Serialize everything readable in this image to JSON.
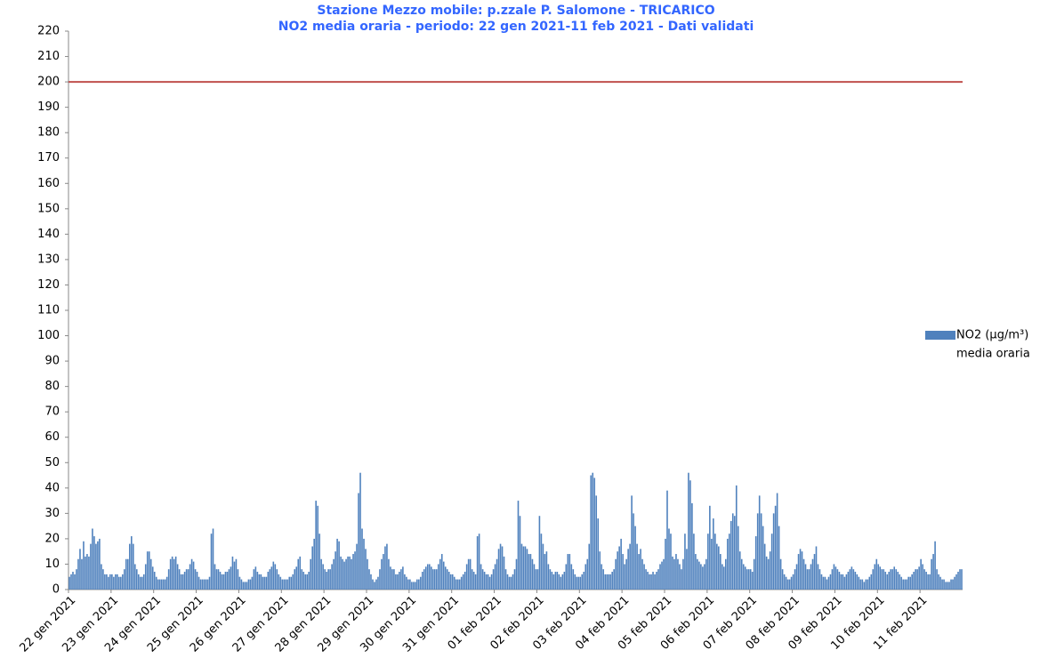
{
  "chart_data": {
    "type": "bar",
    "title": "Stazione Mezzo mobile: p.zzale P. Salomone - TRICARICO",
    "subtitle": "NO2  media oraria - periodo: 22 gen 2021-11  feb 2021 - Dati validati",
    "series": [
      {
        "name": "NO2 (µg/m³)",
        "legend_sublabel": "media oraria",
        "color": "#4f81bd",
        "values": [
          5,
          6,
          7,
          6,
          8,
          12,
          16,
          12,
          19,
          13,
          14,
          13,
          18,
          24,
          21,
          18,
          19,
          20,
          10,
          8,
          6,
          6,
          5,
          6,
          6,
          5,
          6,
          6,
          5,
          5,
          6,
          8,
          12,
          12,
          18,
          21,
          18,
          10,
          8,
          6,
          5,
          5,
          6,
          10,
          15,
          15,
          12,
          9,
          7,
          5,
          4,
          4,
          4,
          4,
          4,
          5,
          8,
          12,
          13,
          12,
          13,
          10,
          8,
          6,
          6,
          7,
          8,
          8,
          10,
          12,
          11,
          8,
          7,
          5,
          4,
          4,
          4,
          4,
          4,
          5,
          22,
          24,
          10,
          8,
          8,
          7,
          6,
          6,
          7,
          7,
          8,
          9,
          13,
          11,
          12,
          8,
          5,
          4,
          3,
          3,
          3,
          4,
          4,
          5,
          8,
          9,
          7,
          6,
          6,
          5,
          5,
          5,
          7,
          8,
          9,
          11,
          10,
          8,
          6,
          5,
          4,
          4,
          4,
          4,
          5,
          5,
          6,
          8,
          9,
          12,
          13,
          8,
          7,
          6,
          6,
          7,
          12,
          17,
          20,
          35,
          33,
          22,
          12,
          10,
          8,
          7,
          8,
          8,
          10,
          12,
          15,
          20,
          19,
          13,
          12,
          11,
          12,
          13,
          13,
          12,
          14,
          15,
          18,
          38,
          46,
          24,
          20,
          16,
          12,
          8,
          6,
          4,
          3,
          4,
          5,
          8,
          12,
          14,
          17,
          18,
          12,
          9,
          8,
          8,
          6,
          6,
          7,
          8,
          9,
          6,
          5,
          4,
          4,
          3,
          3,
          3,
          4,
          4,
          5,
          7,
          8,
          9,
          10,
          10,
          9,
          8,
          8,
          8,
          10,
          12,
          14,
          11,
          9,
          8,
          7,
          6,
          6,
          5,
          4,
          4,
          4,
          5,
          6,
          7,
          10,
          12,
          12,
          8,
          7,
          6,
          21,
          22,
          10,
          8,
          7,
          6,
          6,
          5,
          6,
          8,
          10,
          12,
          16,
          18,
          17,
          13,
          8,
          6,
          5,
          5,
          6,
          8,
          12,
          35,
          29,
          18,
          17,
          17,
          16,
          14,
          14,
          12,
          10,
          8,
          8,
          29,
          22,
          18,
          14,
          15,
          10,
          8,
          7,
          6,
          7,
          7,
          6,
          5,
          6,
          7,
          10,
          14,
          14,
          10,
          8,
          6,
          5,
          5,
          5,
          6,
          7,
          10,
          12,
          18,
          45,
          46,
          44,
          37,
          28,
          15,
          10,
          8,
          6,
          6,
          6,
          6,
          7,
          8,
          12,
          15,
          17,
          20,
          14,
          10,
          12,
          16,
          18,
          37,
          30,
          25,
          18,
          14,
          16,
          12,
          10,
          8,
          7,
          6,
          6,
          7,
          6,
          7,
          8,
          10,
          11,
          12,
          20,
          39,
          24,
          22,
          13,
          12,
          14,
          12,
          10,
          8,
          12,
          22,
          16,
          46,
          43,
          34,
          22,
          14,
          12,
          11,
          10,
          9,
          10,
          12,
          22,
          33,
          20,
          28,
          22,
          18,
          17,
          14,
          10,
          9,
          12,
          20,
          22,
          27,
          30,
          29,
          41,
          25,
          15,
          12,
          10,
          9,
          8,
          8,
          8,
          7,
          12,
          21,
          30,
          37,
          30,
          25,
          18,
          13,
          12,
          15,
          22,
          30,
          33,
          38,
          25,
          12,
          8,
          6,
          5,
          4,
          4,
          5,
          6,
          8,
          10,
          14,
          16,
          15,
          12,
          10,
          8,
          8,
          10,
          12,
          14,
          17,
          10,
          8,
          6,
          5,
          5,
          4,
          5,
          6,
          8,
          10,
          9,
          8,
          7,
          6,
          6,
          5,
          6,
          7,
          8,
          9,
          8,
          7,
          6,
          5,
          4,
          4,
          3,
          4,
          4,
          5,
          6,
          8,
          10,
          12,
          10,
          9,
          8,
          8,
          7,
          6,
          7,
          8,
          8,
          9,
          8,
          7,
          6,
          5,
          4,
          4,
          4,
          5,
          5,
          6,
          7,
          8,
          8,
          9,
          12,
          10,
          8,
          7,
          6,
          6,
          12,
          14,
          19,
          8,
          6,
          5,
          4,
          4,
          3,
          3,
          3,
          4,
          4,
          5,
          6,
          7,
          8,
          8
        ]
      }
    ],
    "limit_line": {
      "value": 200,
      "color": "#c0504d"
    },
    "xlim": [
      0,
      504
    ],
    "xticks": [
      {
        "value": 0,
        "label": "22 gen 2021"
      },
      {
        "value": 24,
        "label": "23 gen 2021"
      },
      {
        "value": 48,
        "label": "24 gen 2021"
      },
      {
        "value": 72,
        "label": "25 gen 2021"
      },
      {
        "value": 96,
        "label": "26 gen 2021"
      },
      {
        "value": 120,
        "label": "27 gen 2021"
      },
      {
        "value": 144,
        "label": "28 gen 2021"
      },
      {
        "value": 168,
        "label": "29 gen 2021"
      },
      {
        "value": 192,
        "label": "30 gen 2021"
      },
      {
        "value": 216,
        "label": "31 gen 2021"
      },
      {
        "value": 240,
        "label": "01 feb 2021"
      },
      {
        "value": 264,
        "label": "02 feb 2021"
      },
      {
        "value": 288,
        "label": "03 feb 2021"
      },
      {
        "value": 312,
        "label": "04 feb 2021"
      },
      {
        "value": 336,
        "label": "05 feb 2021"
      },
      {
        "value": 360,
        "label": "06 feb 2021"
      },
      {
        "value": 384,
        "label": "07 feb 2021"
      },
      {
        "value": 408,
        "label": "08 feb 2021"
      },
      {
        "value": 432,
        "label": "09 feb 2021"
      },
      {
        "value": 456,
        "label": "10 feb 2021"
      },
      {
        "value": 480,
        "label": "11 feb 2021"
      }
    ],
    "ylim": [
      0,
      220
    ],
    "yticks": [
      0,
      10,
      20,
      30,
      40,
      50,
      60,
      70,
      80,
      90,
      100,
      110,
      120,
      130,
      140,
      150,
      160,
      170,
      180,
      190,
      200,
      210,
      220
    ]
  }
}
